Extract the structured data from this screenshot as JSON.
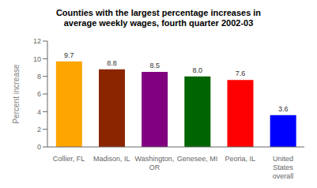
{
  "chart_data": {
    "type": "bar",
    "title": "Counties with the largest percentage increases in\naverage weekly wages, fourth quarter 2002-03",
    "categories": [
      "Collier, FL",
      "Madison, IL",
      "Washington,\nOR",
      "Genesee, MI",
      "Peoria, IL",
      "United\nStates\noverall"
    ],
    "values": [
      9.7,
      8.8,
      8.5,
      8.0,
      7.6,
      3.6
    ],
    "value_labels": [
      "9.7",
      "8.8",
      "8.5",
      "8.0",
      "7.6",
      "3.6"
    ],
    "colors": [
      "#FFA500",
      "#8B2500",
      "#800080",
      "#006400",
      "#FF0000",
      "#0000FF"
    ],
    "ylabel": "Percent increase",
    "ylim": [
      0,
      12
    ],
    "yticks": [
      0,
      2,
      4,
      6,
      8,
      10,
      12
    ],
    "grid": false,
    "data_labels": true
  }
}
